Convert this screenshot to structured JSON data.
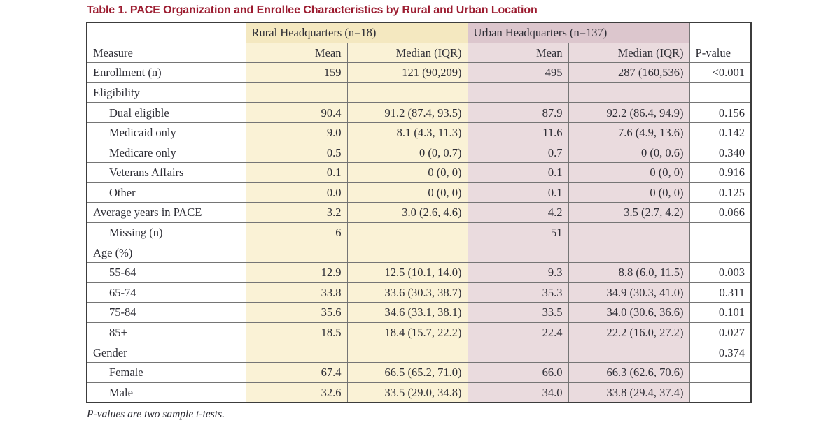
{
  "title": "Table 1. PACE Organization and Enrollee Characteristics by Rural and Urban Location",
  "footnote": "P-values are two sample t-tests.",
  "colors": {
    "title": "#9c1c30",
    "rural_header": "#f4e8c0",
    "rural_body": "#faf2d6",
    "urban_header": "#dcc6cd",
    "urban_body": "#eadbde"
  },
  "table": {
    "group_headers": {
      "rural": "Rural Headquarters (n=18)",
      "urban": "Urban Headquarters (n=137)"
    },
    "column_headers": {
      "measure": "Measure",
      "rural_mean": "Mean",
      "rural_median": "Median (IQR)",
      "urban_mean": "Mean",
      "urban_median": "Median (IQR)",
      "pvalue": "P-value"
    },
    "rows": [
      {
        "label": "Enrollment (n)",
        "indent": false,
        "rural_mean": "159",
        "rural_median": "121 (90,209)",
        "urban_mean": "495",
        "urban_median": "287 (160,536)",
        "pvalue": "<0.001",
        "pvalue_bold": true
      },
      {
        "label": "Eligibility",
        "indent": false,
        "rural_mean": "",
        "rural_median": "",
        "urban_mean": "",
        "urban_median": "",
        "pvalue": ""
      },
      {
        "label": "Dual eligible",
        "indent": true,
        "rural_mean": "90.4",
        "rural_median": "91.2 (87.4, 93.5)",
        "urban_mean": "87.9",
        "urban_median": "92.2 (86.4, 94.9)",
        "pvalue": "0.156"
      },
      {
        "label": "Medicaid only",
        "indent": true,
        "rural_mean": "9.0",
        "rural_median": "8.1 (4.3, 11.3)",
        "urban_mean": "11.6",
        "urban_median": "7.6 (4.9, 13.6)",
        "pvalue": "0.142"
      },
      {
        "label": "Medicare only",
        "indent": true,
        "rural_mean": "0.5",
        "rural_median": "0 (0, 0.7)",
        "urban_mean": "0.7",
        "urban_median": "0 (0, 0.6)",
        "pvalue": "0.340"
      },
      {
        "label": "Veterans Affairs",
        "indent": true,
        "rural_mean": "0.1",
        "rural_median": "0 (0, 0)",
        "urban_mean": "0.1",
        "urban_median": "0 (0, 0)",
        "pvalue": "0.916"
      },
      {
        "label": "Other",
        "indent": true,
        "rural_mean": "0.0",
        "rural_median": "0 (0, 0)",
        "urban_mean": "0.1",
        "urban_median": "0 (0, 0)",
        "pvalue": "0.125"
      },
      {
        "label": "Average years in PACE",
        "indent": false,
        "rural_mean": "3.2",
        "rural_median": "3.0 (2.6, 4.6)",
        "urban_mean": "4.2",
        "urban_median": "3.5 (2.7, 4.2)",
        "pvalue": "0.066"
      },
      {
        "label": "Missing (n)",
        "indent": true,
        "rural_mean": "6",
        "rural_median": "",
        "urban_mean": "51",
        "urban_median": "",
        "pvalue": ""
      },
      {
        "label": "Age (%)",
        "indent": false,
        "rural_mean": "",
        "rural_median": "",
        "urban_mean": "",
        "urban_median": "",
        "pvalue": ""
      },
      {
        "label": "55-64",
        "indent": true,
        "rural_mean": "12.9",
        "rural_median": "12.5 (10.1, 14.0)",
        "urban_mean": "9.3",
        "urban_median": "8.8 (6.0, 11.5)",
        "pvalue": "0.003"
      },
      {
        "label": "65-74",
        "indent": true,
        "rural_mean": "33.8",
        "rural_median": "33.6 (30.3, 38.7)",
        "urban_mean": "35.3",
        "urban_median": "34.9 (30.3, 41.0)",
        "pvalue": "0.311"
      },
      {
        "label": "75-84",
        "indent": true,
        "rural_mean": "35.6",
        "rural_median": "34.6 (33.1, 38.1)",
        "urban_mean": "33.5",
        "urban_median": "34.0 (30.6, 36.6)",
        "pvalue": "0.101"
      },
      {
        "label": "85+",
        "indent": true,
        "rural_mean": "18.5",
        "rural_median": "18.4 (15.7, 22.2)",
        "urban_mean": "22.4",
        "urban_median": "22.2 (16.0, 27.2)",
        "pvalue": "0.027"
      },
      {
        "label": "Gender",
        "indent": false,
        "rural_mean": "",
        "rural_median": "",
        "urban_mean": "",
        "urban_median": "",
        "pvalue": "0.374"
      },
      {
        "label": "Female",
        "indent": true,
        "rural_mean": "67.4",
        "rural_median": "66.5 (65.2, 71.0)",
        "urban_mean": "66.0",
        "urban_median": "66.3 (62.6, 70.6)",
        "pvalue": ""
      },
      {
        "label": "Male",
        "indent": true,
        "rural_mean": "32.6",
        "rural_median": "33.5 (29.0, 34.8)",
        "urban_mean": "34.0",
        "urban_median": "33.8 (29.4, 37.4)",
        "pvalue": ""
      }
    ]
  }
}
